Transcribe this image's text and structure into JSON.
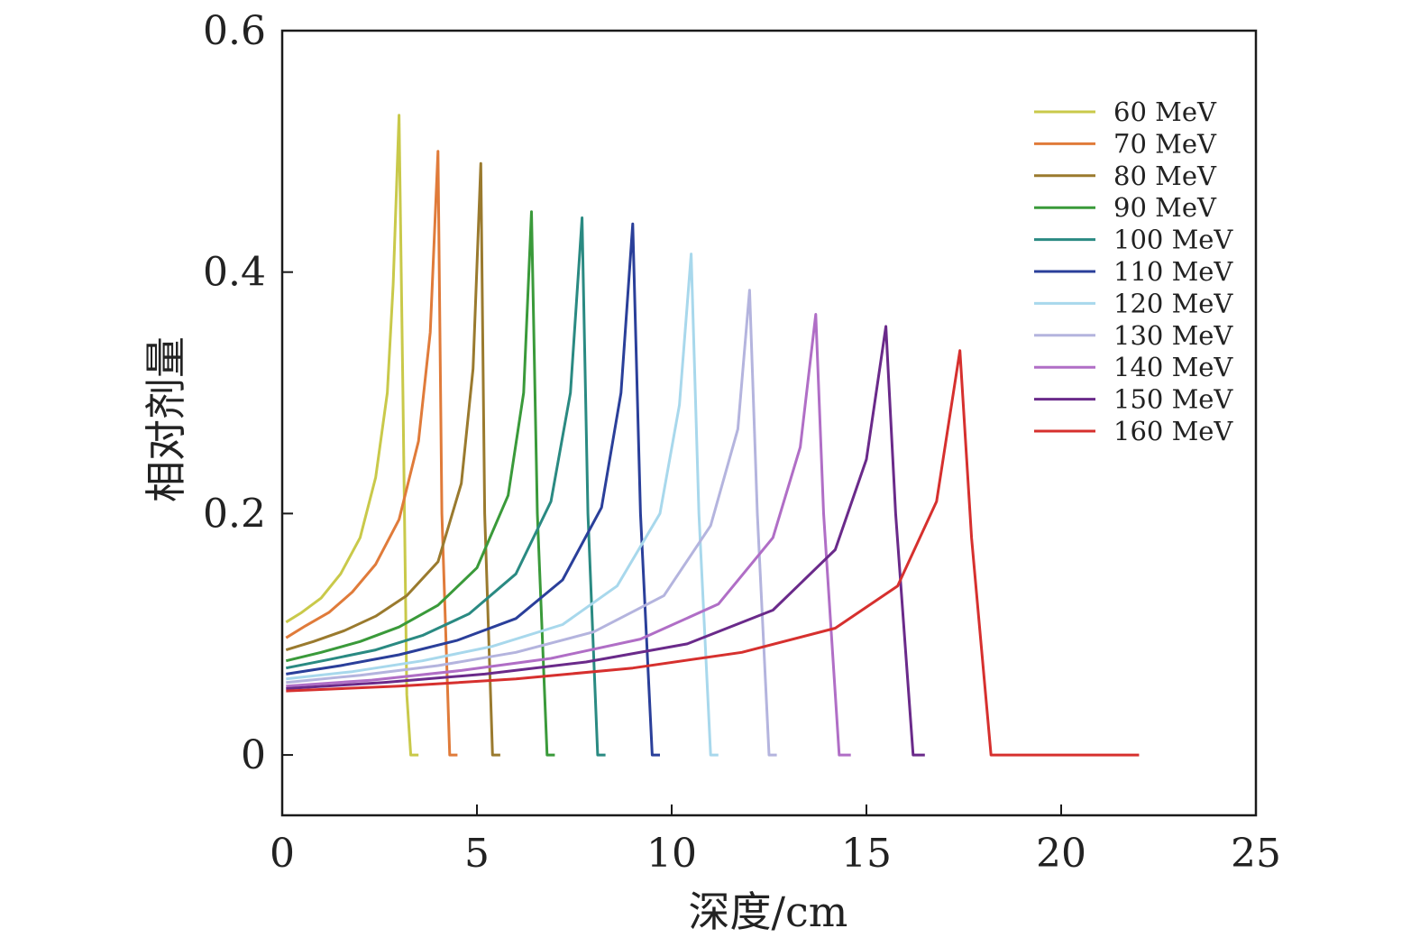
{
  "chart_data": {
    "type": "line",
    "title": "",
    "xlabel": "深度/cm",
    "ylabel": "相对剂量",
    "xlim": [
      0,
      25
    ],
    "ylim": [
      -0.05,
      0.6
    ],
    "xticks": [
      0,
      5,
      10,
      15,
      20,
      25
    ],
    "xtick_labels": [
      "0",
      "5",
      "10",
      "15",
      "20",
      "25"
    ],
    "yticks": [
      0,
      0.2,
      0.4,
      0.6
    ],
    "ytick_labels": [
      "0",
      "0.2",
      "0.4",
      "0.6"
    ],
    "grid": false,
    "legend_position": "top-right",
    "series": [
      {
        "name": "60 MeV",
        "color": "#c9c94a",
        "x": [
          0.1,
          0.5,
          1.0,
          1.5,
          2.0,
          2.4,
          2.7,
          2.85,
          3.0,
          3.1,
          3.2,
          3.3,
          3.5
        ],
        "y": [
          0.11,
          0.118,
          0.13,
          0.15,
          0.18,
          0.23,
          0.3,
          0.39,
          0.53,
          0.3,
          0.05,
          0.0,
          0.0
        ]
      },
      {
        "name": "70 MeV",
        "color": "#e07b3a",
        "x": [
          0.1,
          0.6,
          1.2,
          1.8,
          2.4,
          3.0,
          3.5,
          3.8,
          4.0,
          4.1,
          4.3,
          4.5
        ],
        "y": [
          0.097,
          0.107,
          0.118,
          0.135,
          0.158,
          0.195,
          0.26,
          0.35,
          0.5,
          0.2,
          0.0,
          0.0
        ]
      },
      {
        "name": "80 MeV",
        "color": "#9a7a2e",
        "x": [
          0.1,
          0.8,
          1.6,
          2.4,
          3.2,
          4.0,
          4.6,
          4.9,
          5.1,
          5.2,
          5.4,
          5.6
        ],
        "y": [
          0.087,
          0.094,
          0.103,
          0.115,
          0.132,
          0.16,
          0.225,
          0.32,
          0.49,
          0.2,
          0.0,
          0.0
        ]
      },
      {
        "name": "90 MeV",
        "color": "#3a9a3a",
        "x": [
          0.1,
          1.0,
          2.0,
          3.0,
          4.0,
          5.0,
          5.8,
          6.2,
          6.4,
          6.55,
          6.8,
          7.0
        ],
        "y": [
          0.078,
          0.085,
          0.094,
          0.106,
          0.124,
          0.155,
          0.215,
          0.3,
          0.45,
          0.2,
          0.0,
          0.0
        ]
      },
      {
        "name": "100 MeV",
        "color": "#2a8a82",
        "x": [
          0.1,
          1.2,
          2.4,
          3.6,
          4.8,
          6.0,
          6.9,
          7.4,
          7.7,
          7.85,
          8.1,
          8.3
        ],
        "y": [
          0.072,
          0.079,
          0.087,
          0.099,
          0.117,
          0.15,
          0.21,
          0.3,
          0.445,
          0.2,
          0.0,
          0.0
        ]
      },
      {
        "name": "110 MeV",
        "color": "#2a3f9a",
        "x": [
          0.1,
          1.5,
          3.0,
          4.5,
          6.0,
          7.2,
          8.2,
          8.7,
          9.0,
          9.2,
          9.5,
          9.7
        ],
        "y": [
          0.067,
          0.074,
          0.083,
          0.095,
          0.113,
          0.145,
          0.205,
          0.3,
          0.44,
          0.2,
          0.0,
          0.0
        ]
      },
      {
        "name": "120 MeV",
        "color": "#a8d8ec",
        "x": [
          0.1,
          1.8,
          3.6,
          5.4,
          7.2,
          8.6,
          9.7,
          10.2,
          10.5,
          10.7,
          11.0,
          11.2
        ],
        "y": [
          0.063,
          0.069,
          0.078,
          0.09,
          0.108,
          0.14,
          0.2,
          0.29,
          0.415,
          0.2,
          0.0,
          0.0
        ]
      },
      {
        "name": "130 MeV",
        "color": "#b4b4de",
        "x": [
          0.1,
          2.0,
          4.0,
          6.0,
          8.0,
          9.8,
          11.0,
          11.7,
          12.0,
          12.2,
          12.5,
          12.7
        ],
        "y": [
          0.06,
          0.066,
          0.074,
          0.085,
          0.102,
          0.132,
          0.19,
          0.27,
          0.385,
          0.2,
          0.0,
          0.0
        ]
      },
      {
        "name": "140 MeV",
        "color": "#b06ec6",
        "x": [
          0.1,
          2.3,
          4.6,
          6.9,
          9.2,
          11.2,
          12.6,
          13.3,
          13.7,
          13.9,
          14.3,
          14.6
        ],
        "y": [
          0.057,
          0.062,
          0.07,
          0.08,
          0.096,
          0.125,
          0.18,
          0.255,
          0.365,
          0.2,
          0.0,
          0.0
        ]
      },
      {
        "name": "150 MeV",
        "color": "#6a2a8a",
        "x": [
          0.1,
          2.6,
          5.2,
          7.8,
          10.4,
          12.6,
          14.2,
          15.0,
          15.5,
          15.75,
          16.2,
          16.5
        ],
        "y": [
          0.055,
          0.06,
          0.067,
          0.077,
          0.092,
          0.12,
          0.17,
          0.245,
          0.355,
          0.2,
          0.0,
          0.0
        ]
      },
      {
        "name": "160 MeV",
        "color": "#d6302e",
        "x": [
          0.1,
          3.0,
          6.0,
          9.0,
          11.8,
          14.2,
          15.8,
          16.8,
          17.4,
          17.7,
          18.2,
          18.6,
          22.0
        ],
        "y": [
          0.053,
          0.057,
          0.063,
          0.072,
          0.085,
          0.105,
          0.14,
          0.21,
          0.335,
          0.18,
          0.0,
          0.0,
          0.0
        ]
      }
    ]
  }
}
